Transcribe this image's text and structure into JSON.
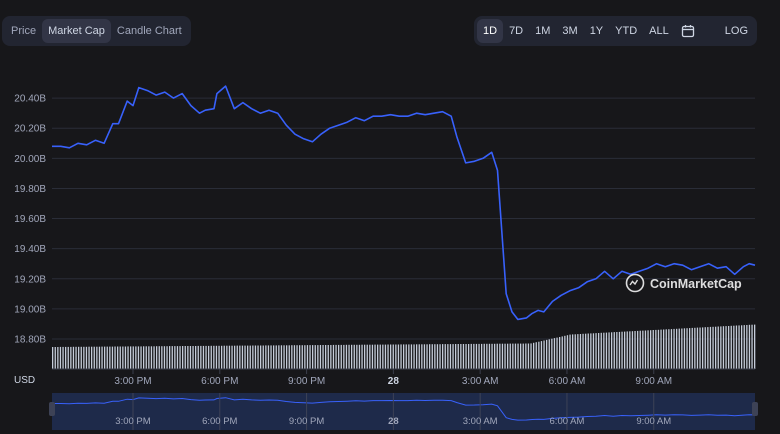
{
  "tabs": [
    {
      "label": "Price"
    },
    {
      "label": "Market Cap",
      "active": true
    },
    {
      "label": "Candle Chart"
    }
  ],
  "ranges": [
    {
      "label": "1D",
      "active": true
    },
    {
      "label": "7D"
    },
    {
      "label": "1M"
    },
    {
      "label": "3M"
    },
    {
      "label": "1Y"
    },
    {
      "label": "YTD"
    },
    {
      "label": "ALL"
    }
  ],
  "calendar_icon": "calendar-icon",
  "log_label": "LOG",
  "watermark": "CoinMarketCap",
  "currency_label": "USD",
  "colors": {
    "line": "#3861fb",
    "grid": "#2a2d38",
    "text": "#a1a7bb",
    "volume": "#cfd6e4",
    "background": "#17171a"
  },
  "chart_data": {
    "type": "line",
    "title": "",
    "xlabel": "",
    "ylabel": "USD",
    "ylim": [
      18.8,
      20.6
    ],
    "yticks": [
      "20.40B",
      "20.20B",
      "20.00B",
      "19.80B",
      "19.60B",
      "19.40B",
      "19.20B",
      "19.00B",
      "18.80B"
    ],
    "ytick_values": [
      20.4,
      20.2,
      20.0,
      19.8,
      19.6,
      19.4,
      19.2,
      19.0,
      18.8
    ],
    "xlim": [
      12.2,
      36.5
    ],
    "xticks": [
      {
        "label": "3:00 PM",
        "t": 15
      },
      {
        "label": "6:00 PM",
        "t": 18
      },
      {
        "label": "9:00 PM",
        "t": 21
      },
      {
        "label": "28",
        "t": 24
      },
      {
        "label": "3:00 AM",
        "t": 27
      },
      {
        "label": "6:00 AM",
        "t": 30
      },
      {
        "label": "9:00 AM",
        "t": 33
      }
    ],
    "grid": true,
    "series": [
      {
        "x": [
          12.2,
          12.5,
          12.8,
          13.1,
          13.4,
          13.7,
          14.0,
          14.3,
          14.5,
          14.8,
          15.0,
          15.2,
          15.5,
          15.8,
          16.1,
          16.4,
          16.7,
          17.0,
          17.3,
          17.5,
          17.8,
          17.9,
          18.2,
          18.5,
          18.8,
          19.1,
          19.4,
          19.7,
          20.0,
          20.3,
          20.6,
          20.9,
          21.2,
          21.5,
          21.8,
          22.1,
          22.4,
          22.7,
          23.0,
          23.3,
          23.6,
          23.9,
          24.2,
          24.5,
          24.8,
          25.1,
          25.4,
          25.7,
          26.0,
          26.2,
          26.5,
          26.8,
          27.1,
          27.4,
          27.6,
          27.9,
          28.1,
          28.3,
          28.6,
          28.8,
          29.0,
          29.2,
          29.5,
          29.8,
          30.1,
          30.4,
          30.7,
          31.0,
          31.3,
          31.6,
          31.9,
          32.2,
          32.5,
          32.8,
          33.1,
          33.4,
          33.7,
          34.0,
          34.3,
          34.6,
          34.9,
          35.2,
          35.5,
          35.8,
          36.1,
          36.3,
          36.5
        ],
        "y": [
          20.08,
          20.08,
          20.07,
          20.1,
          20.09,
          20.12,
          20.1,
          20.23,
          20.23,
          20.38,
          20.35,
          20.47,
          20.45,
          20.42,
          20.44,
          20.4,
          20.43,
          20.35,
          20.3,
          20.32,
          20.33,
          20.43,
          20.48,
          20.33,
          20.37,
          20.33,
          20.3,
          20.32,
          20.3,
          20.22,
          20.16,
          20.13,
          20.11,
          20.16,
          20.2,
          20.22,
          20.24,
          20.27,
          20.25,
          20.28,
          20.28,
          20.29,
          20.28,
          20.28,
          20.3,
          20.29,
          20.3,
          20.31,
          20.28,
          20.14,
          19.97,
          19.98,
          20.0,
          20.04,
          19.92,
          19.1,
          18.98,
          18.93,
          18.94,
          18.97,
          18.99,
          18.98,
          19.05,
          19.09,
          19.12,
          19.14,
          19.18,
          19.2,
          19.25,
          19.2,
          19.25,
          19.23,
          19.25,
          19.27,
          19.3,
          19.28,
          19.3,
          19.29,
          19.26,
          19.28,
          19.3,
          19.27,
          19.28,
          19.23,
          19.28,
          19.3,
          19.29
        ]
      }
    ],
    "volume_note": "volume bars under the line"
  }
}
